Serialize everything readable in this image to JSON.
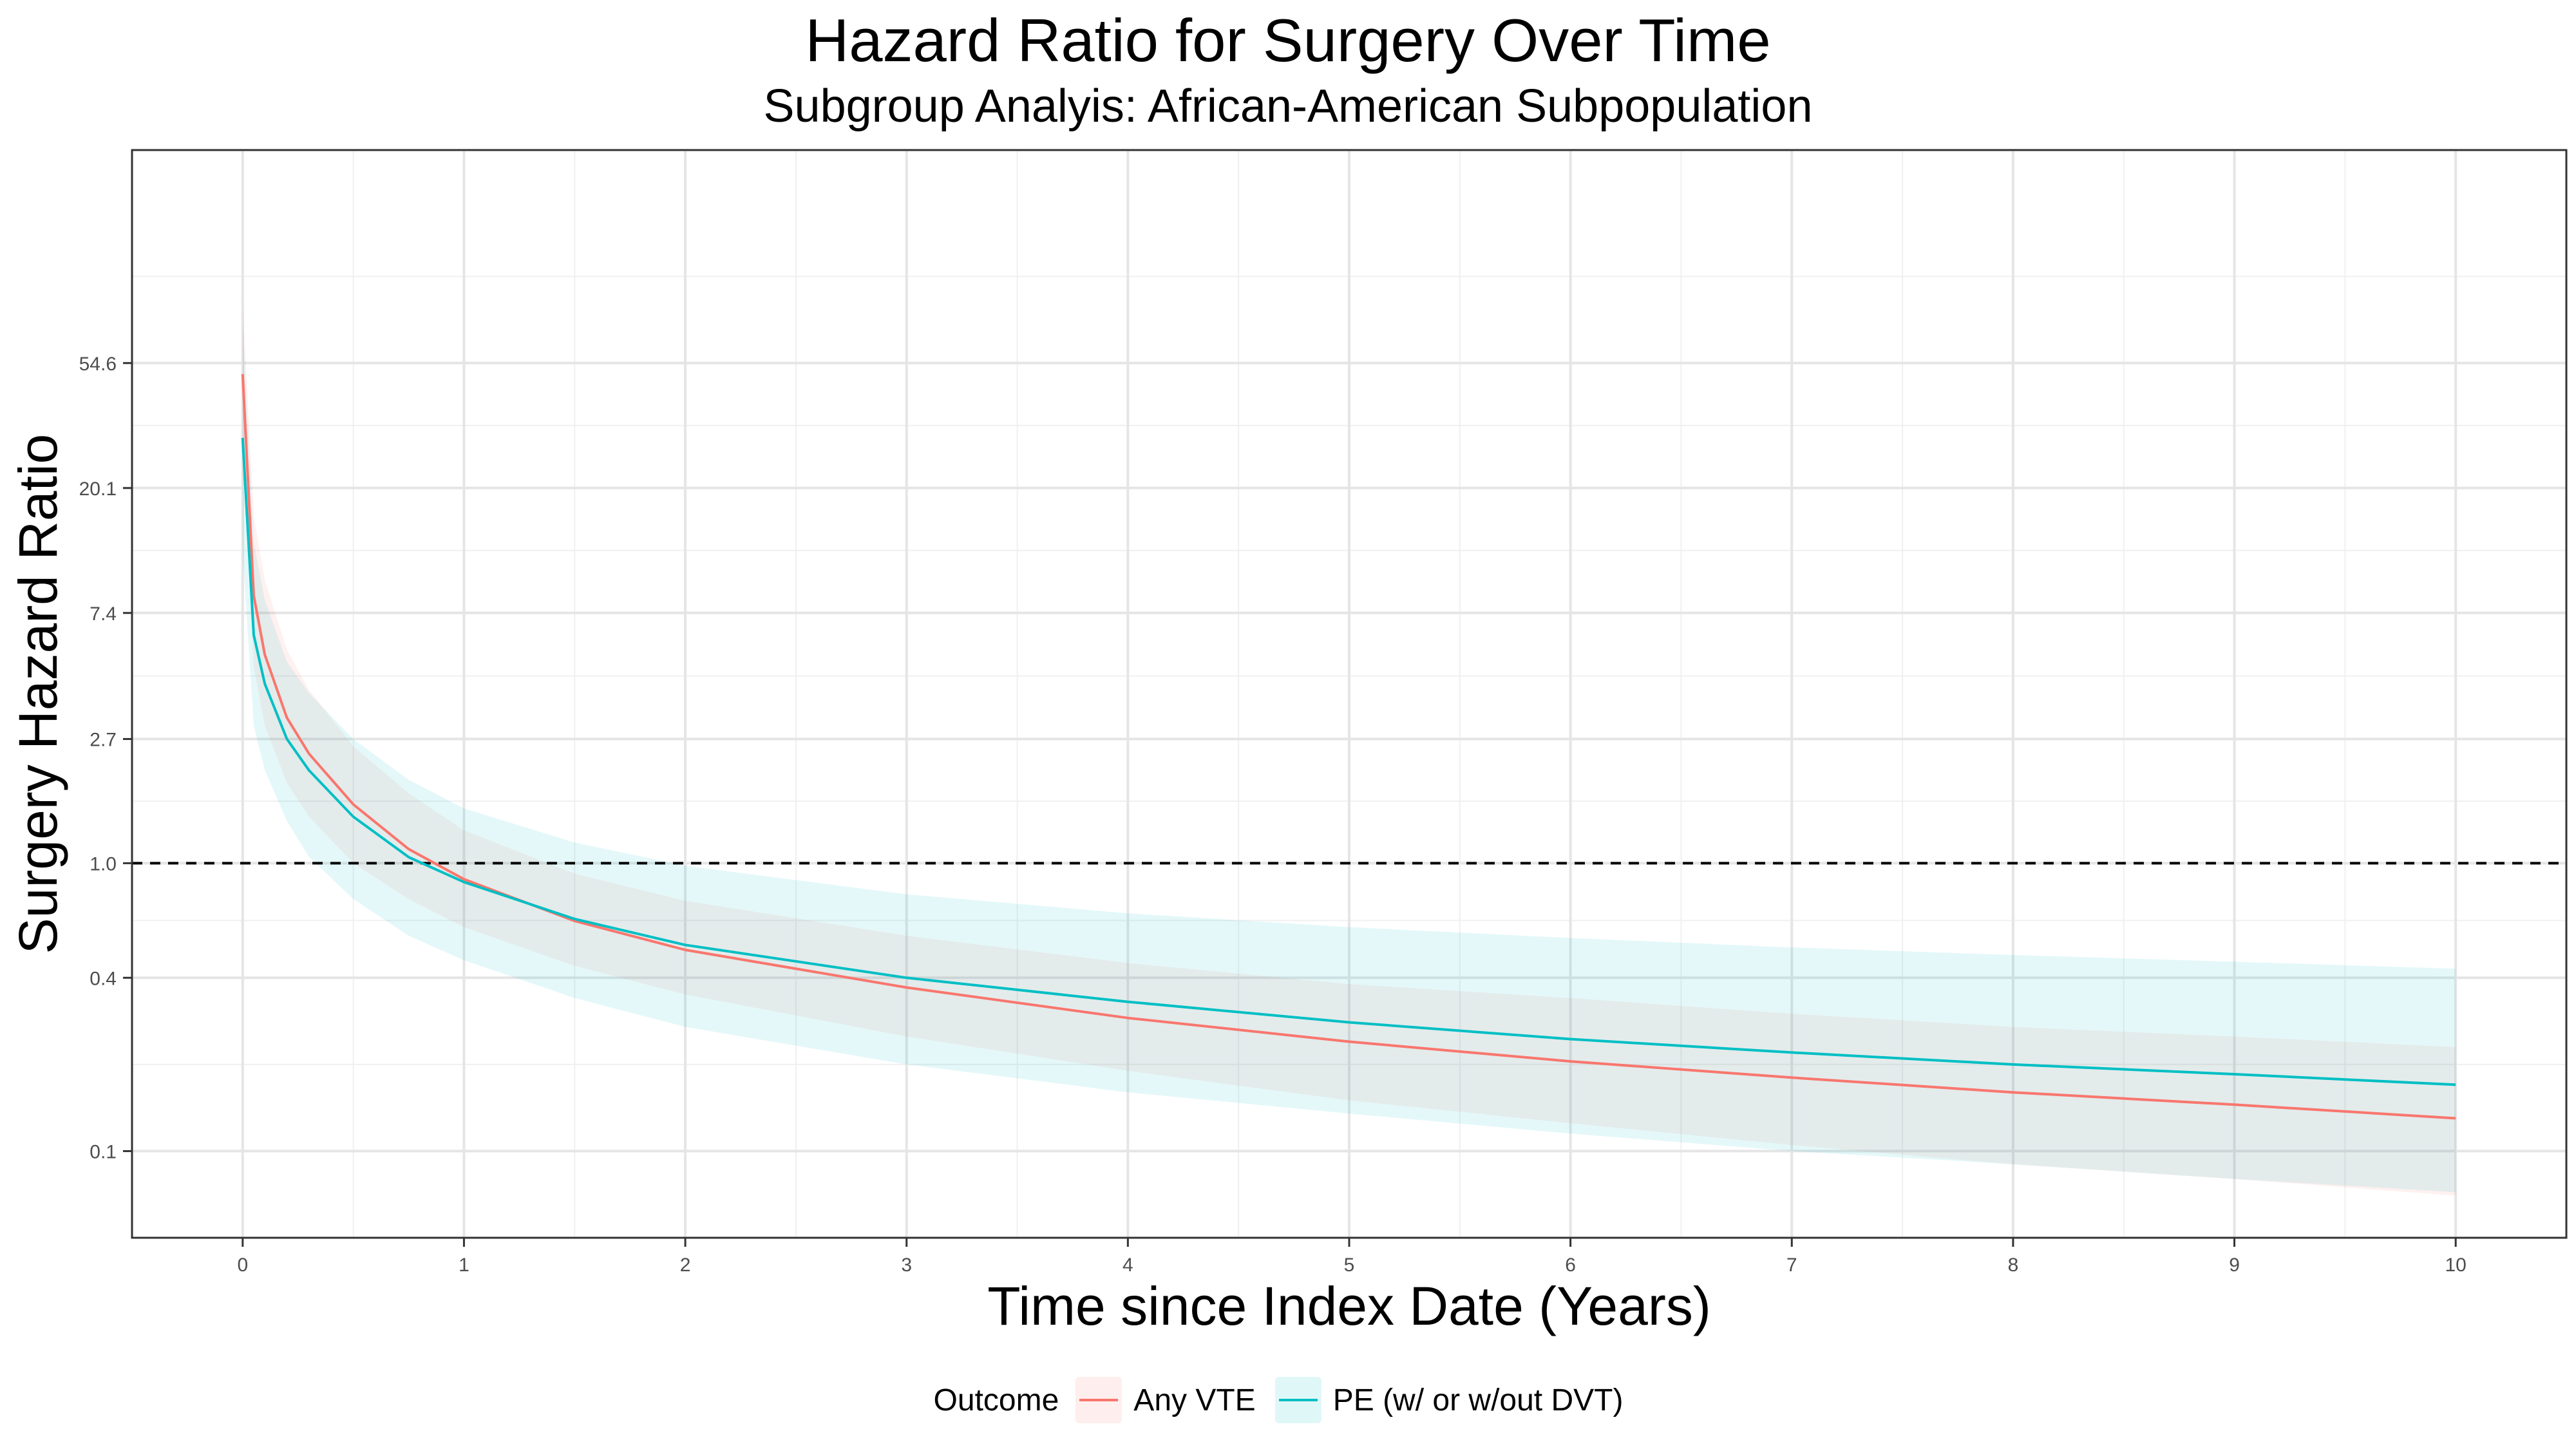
{
  "chart_data": {
    "type": "line",
    "title": "Hazard Ratio for Surgery Over Time",
    "subtitle": "Subgroup Analyis: African-American Subpopulation",
    "xlabel": "Time since Index Date (Years)",
    "ylabel": "Surgery Hazard Ratio",
    "xlim": [
      -0.5,
      10.5
    ],
    "x_ticks": [
      0,
      1,
      2,
      3,
      4,
      5,
      6,
      7,
      8,
      9,
      10
    ],
    "x_tick_labels": [
      "0",
      "1",
      "2",
      "3",
      "4",
      "5",
      "6",
      "7",
      "8",
      "9",
      "10"
    ],
    "y_scale": "log",
    "ylim": [
      0.05,
      300
    ],
    "y_ticks": [
      0.1,
      0.4,
      1.0,
      2.7,
      7.4,
      20.1,
      54.6
    ],
    "y_tick_labels": [
      "0.1",
      "0.4",
      "1.0",
      "2.7",
      "7.4",
      "20.1",
      "54.6"
    ],
    "reference_line": {
      "y": 1.0,
      "style": "dashed"
    },
    "grid": true,
    "legend": {
      "title": "Outcome",
      "position": "bottom",
      "entries": [
        "Any VTE",
        "PE (w/ or w/out DVT)"
      ]
    },
    "series": [
      {
        "name": "Any VTE",
        "color": "#F8766D",
        "ribbon_color": "#F8766D",
        "x": [
          0,
          0.05,
          0.1,
          0.2,
          0.3,
          0.5,
          0.75,
          1,
          1.5,
          2,
          3,
          4,
          5,
          6,
          7,
          8,
          9,
          10
        ],
        "y": [
          50,
          8.5,
          5.3,
          3.2,
          2.4,
          1.6,
          1.12,
          0.88,
          0.63,
          0.5,
          0.37,
          0.29,
          0.24,
          0.205,
          0.18,
          0.16,
          0.145,
          0.13
        ],
        "lower": [
          30,
          4.8,
          3.0,
          1.9,
          1.45,
          1.0,
          0.75,
          0.6,
          0.44,
          0.35,
          0.25,
          0.19,
          0.15,
          0.125,
          0.105,
          0.09,
          0.08,
          0.07
        ],
        "upper": [
          90,
          16,
          9.6,
          5.5,
          4.0,
          2.55,
          1.75,
          1.3,
          0.92,
          0.74,
          0.56,
          0.45,
          0.38,
          0.34,
          0.3,
          0.27,
          0.25,
          0.23
        ]
      },
      {
        "name": "PE (w/ or w/out DVT)",
        "color": "#00BFC4",
        "ribbon_color": "#00BFC4",
        "x": [
          0,
          0.05,
          0.1,
          0.2,
          0.3,
          0.5,
          0.75,
          1,
          1.5,
          2,
          3,
          4,
          5,
          6,
          7,
          8,
          9,
          10
        ],
        "y": [
          30,
          6.2,
          4.2,
          2.7,
          2.1,
          1.45,
          1.05,
          0.86,
          0.64,
          0.52,
          0.4,
          0.33,
          0.28,
          0.245,
          0.22,
          0.2,
          0.185,
          0.17
        ],
        "lower": [
          12,
          3.0,
          2.1,
          1.4,
          1.05,
          0.75,
          0.56,
          0.46,
          0.34,
          0.27,
          0.2,
          0.16,
          0.135,
          0.115,
          0.1,
          0.09,
          0.08,
          0.072
        ],
        "upper": [
          75,
          13,
          8.2,
          5.0,
          3.9,
          2.7,
          1.95,
          1.55,
          1.18,
          0.98,
          0.78,
          0.67,
          0.6,
          0.55,
          0.51,
          0.48,
          0.455,
          0.43
        ]
      }
    ]
  }
}
